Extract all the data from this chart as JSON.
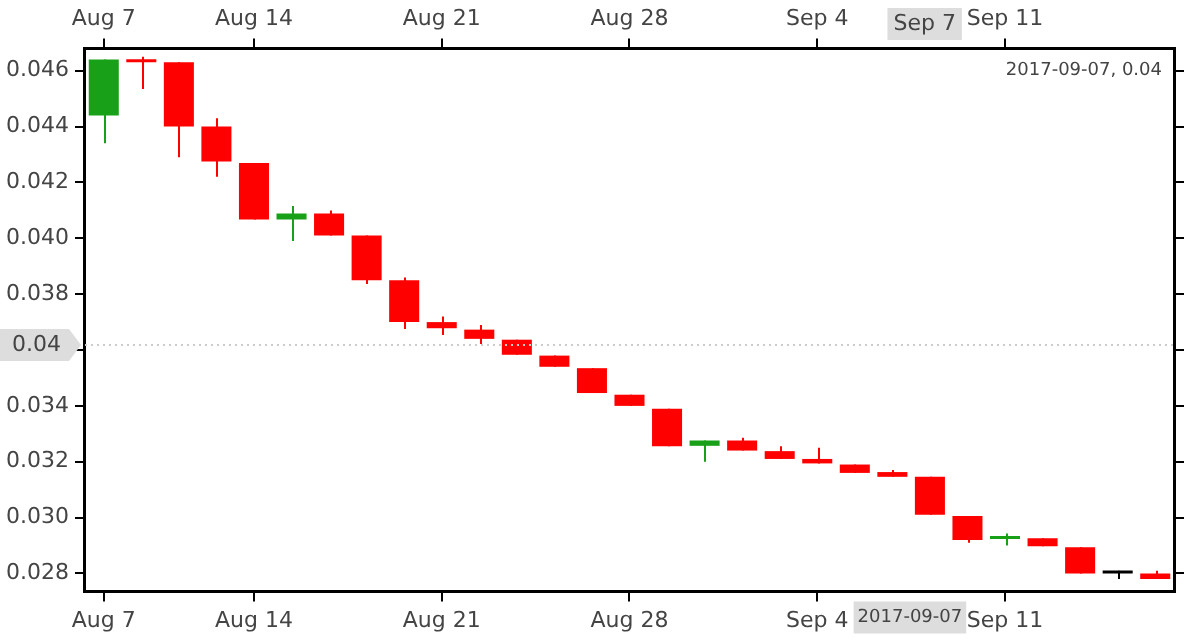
{
  "chart_data": {
    "type": "candlestick",
    "categories": [
      "Aug 7",
      null,
      null,
      null,
      "Aug 14",
      null,
      null,
      null,
      null,
      "Aug 21",
      null,
      null,
      null,
      null,
      "Aug 28",
      null,
      null,
      null,
      null,
      "Sep 4",
      null,
      null,
      null,
      null,
      "Sep 11",
      null,
      null,
      null,
      null
    ],
    "ohlc": [
      [
        0.0444,
        0.0464,
        0.0434,
        0.0464
      ],
      [
        0.0464,
        0.0465,
        0.04535,
        0.0463
      ],
      [
        0.0463,
        0.0463,
        0.0429,
        0.044
      ],
      [
        0.044,
        0.0443,
        0.0422,
        0.04275
      ],
      [
        0.0427,
        0.0427,
        0.04067,
        0.04067
      ],
      [
        0.04067,
        0.04116,
        0.0399,
        0.04089
      ],
      [
        0.04089,
        0.041,
        0.0401,
        0.0401
      ],
      [
        0.0401,
        0.0401,
        0.03836,
        0.0385
      ],
      [
        0.0385,
        0.0386,
        0.03675,
        0.037
      ],
      [
        0.037,
        0.0372,
        0.03654,
        0.03678
      ],
      [
        0.03673,
        0.0369,
        0.03622,
        0.0364
      ],
      [
        0.03637,
        0.03637,
        0.03583,
        0.03583
      ],
      [
        0.0358,
        0.0358,
        0.0354,
        0.0354
      ],
      [
        0.03535,
        0.03535,
        0.03446,
        0.03446
      ],
      [
        0.0344,
        0.0344,
        0.034,
        0.034
      ],
      [
        0.0339,
        0.0339,
        0.03255,
        0.03255
      ],
      [
        0.03257,
        0.03276,
        0.032,
        0.03276
      ],
      [
        0.03276,
        0.03286,
        0.0324,
        0.0324
      ],
      [
        0.03238,
        0.03255,
        0.0321,
        0.0321
      ],
      [
        0.0321,
        0.0325,
        0.03194,
        0.03194
      ],
      [
        0.0319,
        0.0319,
        0.0316,
        0.0316
      ],
      [
        0.03163,
        0.0317,
        0.03146,
        0.03146
      ],
      [
        0.03146,
        0.03146,
        0.0301,
        0.0301
      ],
      [
        0.03006,
        0.03006,
        0.0291,
        0.0292
      ],
      [
        0.02923,
        0.02943,
        0.029,
        0.02928
      ],
      [
        0.02926,
        0.02926,
        0.02897,
        0.02897
      ],
      [
        0.02894,
        0.02894,
        0.028,
        0.028
      ],
      [
        0.028,
        0.0281,
        0.0278,
        0.028
      ],
      [
        0.028,
        0.0281,
        0.0278,
        0.0278
      ]
    ],
    "colors": [
      "#18a018",
      "#ff0000",
      "#ff0000",
      "#ff0000",
      "#ff0000",
      "#18a018",
      "#ff0000",
      "#ff0000",
      "#ff0000",
      "#ff0000",
      "#ff0000",
      "#ff0000",
      "#ff0000",
      "#ff0000",
      "#ff0000",
      "#ff0000",
      "#18a018",
      "#ff0000",
      "#ff0000",
      "#ff0000",
      "#ff0000",
      "#ff0000",
      "#ff0000",
      "#ff0000",
      "#18a018",
      "#ff0000",
      "#ff0000",
      "#000000",
      "#ff0000"
    ],
    "ylim": [
      0.02735,
      0.0468
    ],
    "yticks": [
      {
        "value": 0.028,
        "label": "0.028"
      },
      {
        "value": 0.03,
        "label": "0.030"
      },
      {
        "value": 0.032,
        "label": "0.032"
      },
      {
        "value": 0.034,
        "label": "0.034"
      },
      {
        "value": 0.036,
        "label": null
      },
      {
        "value": 0.038,
        "label": "0.038"
      },
      {
        "value": 0.04,
        "label": "0.040"
      },
      {
        "value": 0.042,
        "label": "0.042"
      },
      {
        "value": 0.044,
        "label": "0.044"
      },
      {
        "value": 0.046,
        "label": "0.046"
      }
    ],
    "ref_lines": [
      {
        "axis": "y",
        "value": 0.0362,
        "label": "0.04",
        "color": "#cccccc",
        "line_style": "dotted"
      }
    ],
    "annotations": [
      "Sep 7",
      "2017-09-07",
      "2017-09-07, 0.04"
    ],
    "grid": false,
    "legend": false
  }
}
